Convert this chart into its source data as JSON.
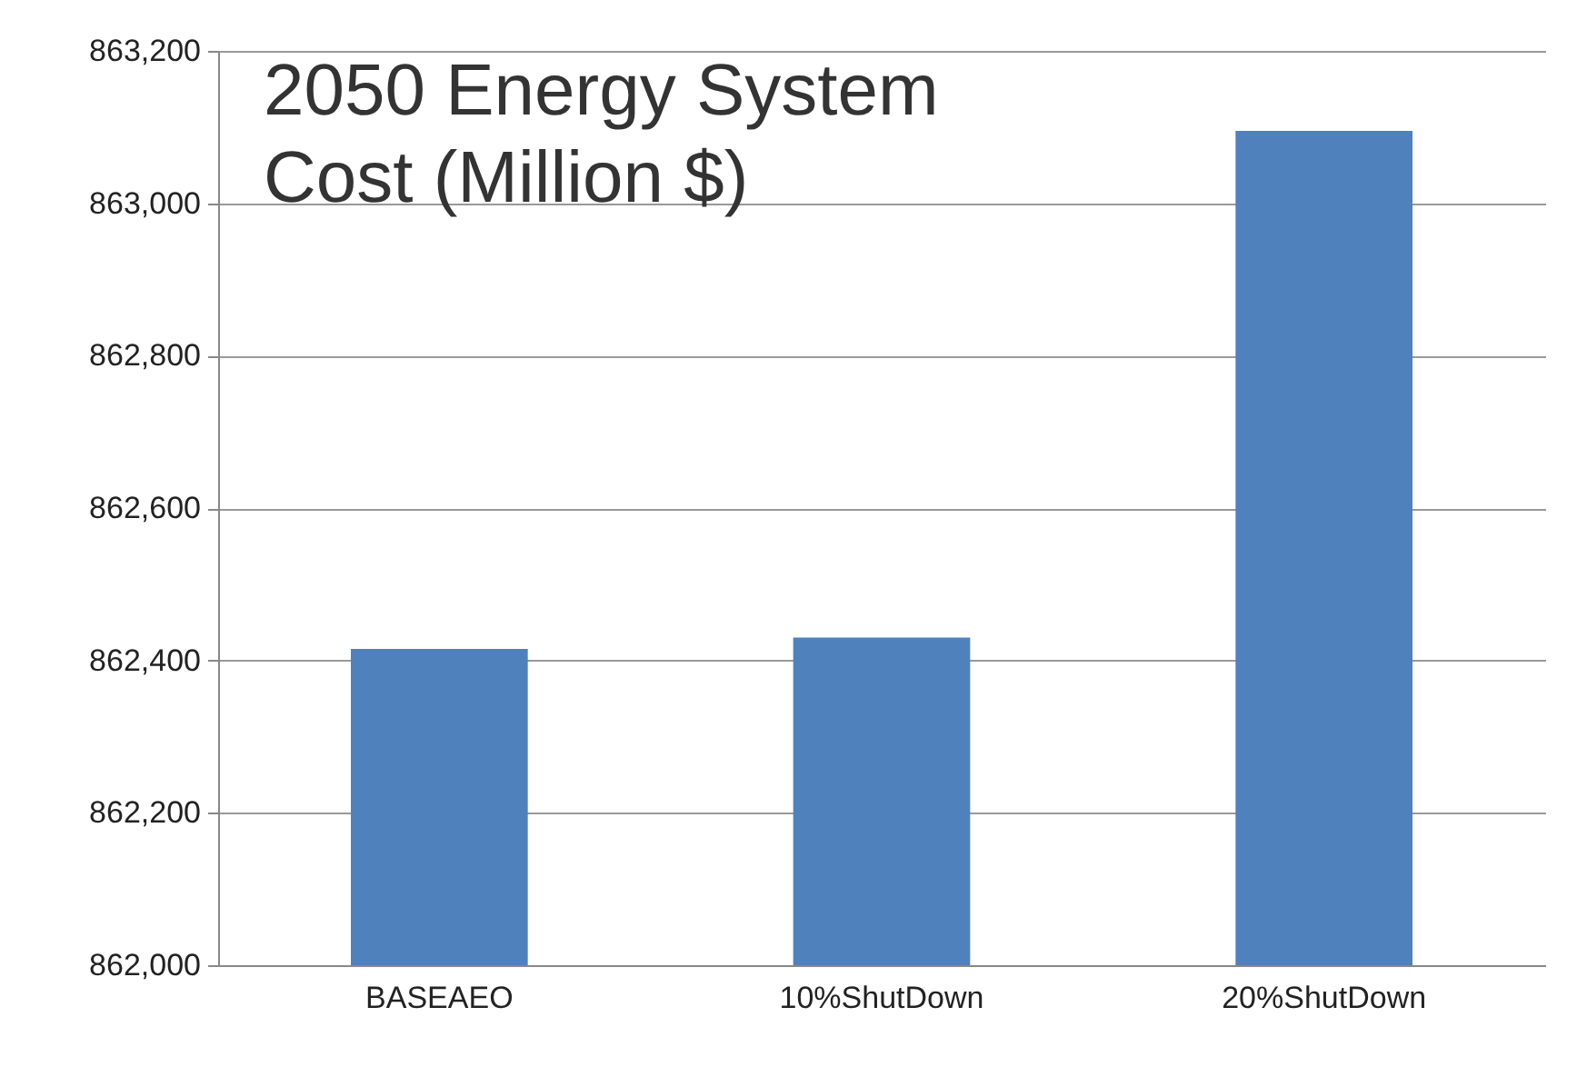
{
  "chart_data": {
    "type": "bar",
    "title": "2050 Energy System\nCost (Million $)",
    "categories": [
      "BASEAEO",
      "10%ShutDown",
      "20%ShutDown"
    ],
    "values": [
      862415,
      862430,
      863095
    ],
    "color": "#4f81bd",
    "ylim": [
      862000,
      863200
    ],
    "yticks": [
      {
        "value": 862000,
        "label": "862,000"
      },
      {
        "value": 862200,
        "label": "862,200"
      },
      {
        "value": 862400,
        "label": "862,400"
      },
      {
        "value": 862600,
        "label": "862,600"
      },
      {
        "value": 862800,
        "label": "862,800"
      },
      {
        "value": 863000,
        "label": "863,000"
      },
      {
        "value": 863200,
        "label": "863,200"
      }
    ],
    "grid": "y"
  }
}
